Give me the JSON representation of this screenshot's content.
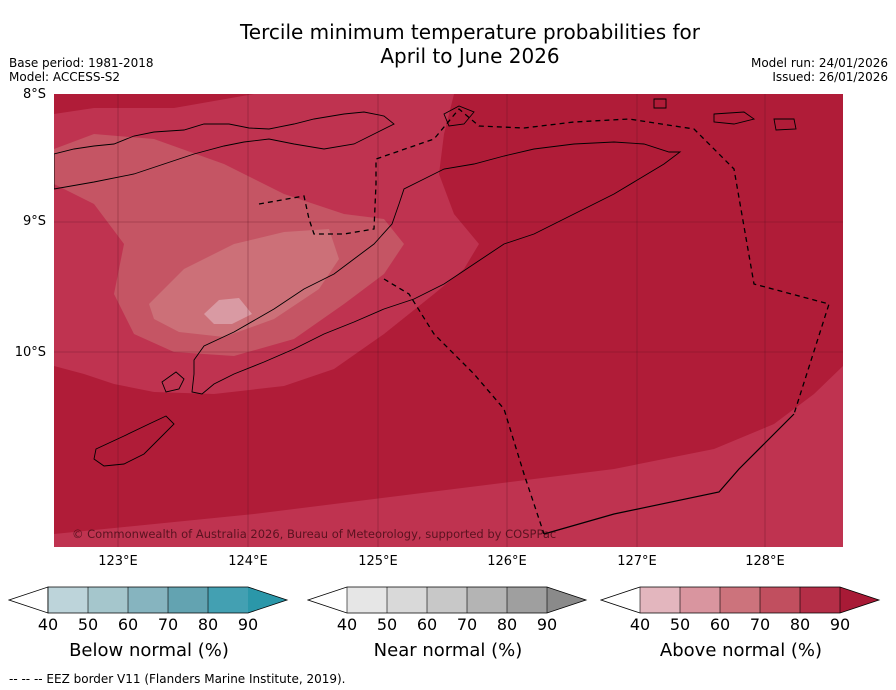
{
  "title": {
    "line1": "Tercile minimum temperature probabilities for",
    "line2": "April to June 2026"
  },
  "meta": {
    "base_period": "Base period: 1981-2018",
    "model": "Model: ACCESS-S2",
    "model_run": "Model run: 24/01/2026",
    "issued": "Issued: 26/01/2026"
  },
  "map": {
    "lat_labels": [
      "8°S",
      "9°S",
      "10°S"
    ],
    "lon_labels": [
      "123°E",
      "124°E",
      "125°E",
      "126°E",
      "127°E",
      "128°E"
    ],
    "copyright": "© Commonwealth of Australia 2026, Bureau of Meteorology, supported by COSPPac",
    "colors": {
      "ocean_90": "#b01c38",
      "band_80": "#bf3350",
      "band_70": "#c55564",
      "band_60": "#cc7078",
      "band_50": "#d99aa3",
      "coast": "#000000"
    }
  },
  "colorbars": [
    {
      "title": "Below normal (%)",
      "ticks": [
        "40",
        "50",
        "60",
        "70",
        "80",
        "90"
      ],
      "colors": [
        "#bdd4da",
        "#a5c6cc",
        "#86b4bf",
        "#63a3b1",
        "#43a0b2",
        "#2b97a9"
      ]
    },
    {
      "title": "Near normal (%)",
      "ticks": [
        "40",
        "50",
        "60",
        "70",
        "80",
        "90"
      ],
      "colors": [
        "#e6e6e6",
        "#d9d9d9",
        "#c8c8c8",
        "#b4b4b4",
        "#9f9f9f",
        "#8a8a8a"
      ]
    },
    {
      "title": "Above normal (%)",
      "ticks": [
        "40",
        "50",
        "60",
        "70",
        "80",
        "90"
      ],
      "colors": [
        "#e3b6be",
        "#d9959f",
        "#cc737c",
        "#c14f5f",
        "#b42e47",
        "#a81a36"
      ]
    }
  ],
  "footnote": "--  --  -- EEZ border V11 (Flanders Marine Institute, 2019)."
}
